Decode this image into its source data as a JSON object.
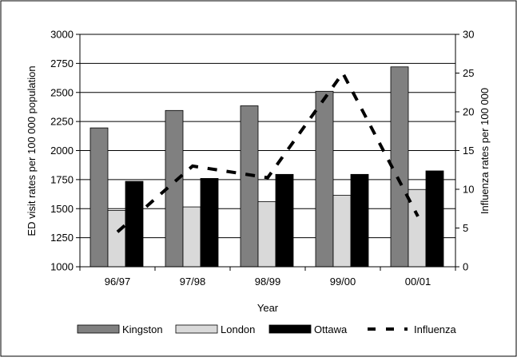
{
  "chart_data": {
    "type": "bar",
    "title": "",
    "xlabel": "Year",
    "ylabel": "ED visit rates per 100 000 population",
    "y2label": "Influenza rates per 100 000",
    "categories": [
      "96/97",
      "97/98",
      "98/99",
      "99/00",
      "00/01"
    ],
    "ylim": [
      1000,
      3000
    ],
    "yticks": [
      1000,
      1250,
      1500,
      1750,
      2000,
      2250,
      2500,
      2750,
      3000
    ],
    "y2lim": [
      0,
      30
    ],
    "y2ticks": [
      0,
      5,
      10,
      15,
      20,
      25,
      30
    ],
    "grid": true,
    "legend_position": "bottom",
    "series": [
      {
        "name": "Kingston",
        "type": "bar",
        "axis": "left",
        "color": "#808080",
        "values": [
          2195,
          2345,
          2385,
          2510,
          2720
        ]
      },
      {
        "name": "London",
        "type": "bar",
        "axis": "left",
        "color": "#d9d9d9",
        "values": [
          1485,
          1515,
          1560,
          1615,
          1665
        ]
      },
      {
        "name": "Ottawa",
        "type": "bar",
        "axis": "left",
        "color": "#000000",
        "values": [
          1735,
          1760,
          1795,
          1795,
          1825
        ]
      },
      {
        "name": "Influenza",
        "type": "line",
        "axis": "right",
        "style": "dashed",
        "color": "#000000",
        "values": [
          4.5,
          13,
          11.5,
          25,
          6.5
        ]
      }
    ]
  }
}
